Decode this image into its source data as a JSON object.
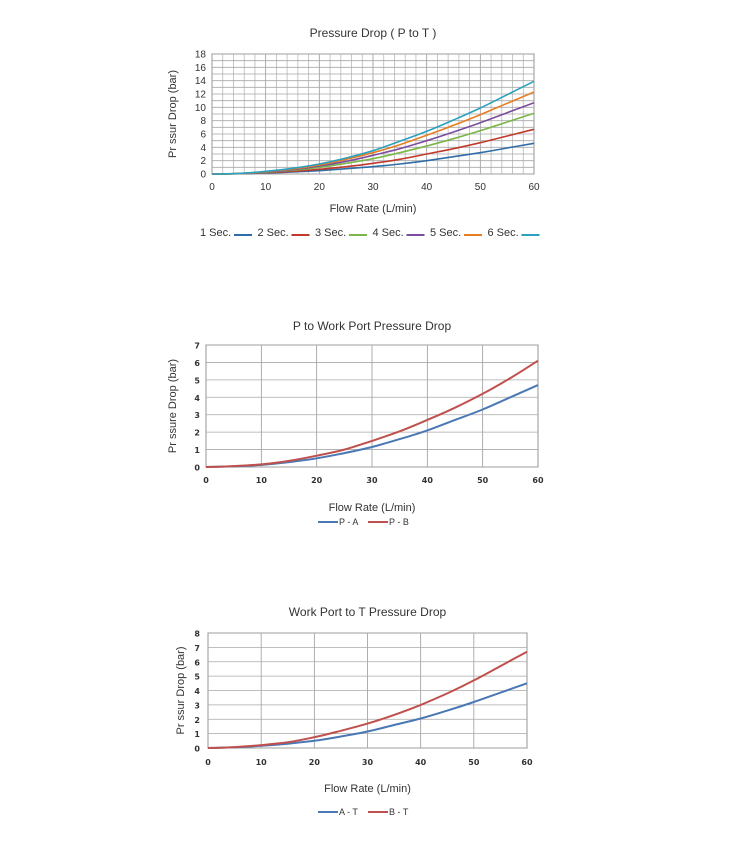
{
  "chart_data": [
    {
      "type": "line",
      "title": "Pressure Drop ( P to T )",
      "xlabel": "Flow Rate (L/min)",
      "ylabel": "Pr  ssur  Drop (bar)",
      "xlim": [
        0,
        60
      ],
      "ylim": [
        0,
        18
      ],
      "x_ticks": [
        "0",
        "10",
        "20",
        "30",
        "40",
        "50",
        "60"
      ],
      "y_ticks": [
        "0",
        "2",
        "4",
        "6",
        "8",
        "10",
        "12",
        "14",
        "16",
        "18"
      ],
      "grid": true,
      "legend_position": "bottom",
      "x": [
        0,
        5,
        10,
        15,
        20,
        25,
        30,
        35,
        40,
        45,
        50,
        55,
        60
      ],
      "series": [
        {
          "name": "1 Sec.",
          "color": "#2f6da8",
          "values": [
            0,
            0.05,
            0.15,
            0.3,
            0.5,
            0.8,
            1.1,
            1.5,
            2.0,
            2.6,
            3.2,
            3.9,
            4.6
          ]
        },
        {
          "name": "2 Sec.",
          "color": "#c0392b",
          "values": [
            0,
            0.05,
            0.2,
            0.4,
            0.7,
            1.1,
            1.6,
            2.2,
            3.0,
            3.8,
            4.7,
            5.7,
            6.7
          ]
        },
        {
          "name": "3 Sec.",
          "color": "#7ab648",
          "values": [
            0,
            0.06,
            0.25,
            0.55,
            1.0,
            1.6,
            2.3,
            3.2,
            4.2,
            5.3,
            6.5,
            7.8,
            9.1
          ]
        },
        {
          "name": "4 Sec.",
          "color": "#7c4d9e",
          "values": [
            0,
            0.07,
            0.3,
            0.65,
            1.2,
            1.9,
            2.8,
            3.8,
            5.0,
            6.3,
            7.7,
            9.2,
            10.7
          ]
        },
        {
          "name": "5 Sec.",
          "color": "#e67e22",
          "values": [
            0,
            0.08,
            0.35,
            0.75,
            1.35,
            2.2,
            3.2,
            4.4,
            5.8,
            7.3,
            8.9,
            10.6,
            12.3
          ]
        },
        {
          "name": "6 Sec.",
          "color": "#2aa1c0",
          "values": [
            0,
            0.09,
            0.4,
            0.85,
            1.5,
            2.4,
            3.5,
            4.9,
            6.4,
            8.1,
            9.9,
            11.9,
            13.9
          ]
        }
      ]
    },
    {
      "type": "line",
      "title": "P to Work Port Pressure Drop",
      "xlabel": "Flow Rate (L/min)",
      "ylabel": "Pr  ssure Drop (bar)",
      "xlim": [
        0,
        60
      ],
      "ylim": [
        0,
        7
      ],
      "x_ticks": [
        "0",
        "10",
        "20",
        "30",
        "40",
        "50",
        "60"
      ],
      "y_ticks": [
        "0",
        "1",
        "2",
        "3",
        "4",
        "5",
        "6",
        "7"
      ],
      "grid": true,
      "legend_position": "bottom",
      "x": [
        0,
        5,
        10,
        15,
        20,
        25,
        30,
        35,
        40,
        45,
        50,
        55,
        60
      ],
      "series": [
        {
          "name": "P - A",
          "color": "#4a78b5",
          "values": [
            0,
            0.04,
            0.12,
            0.28,
            0.5,
            0.8,
            1.15,
            1.6,
            2.1,
            2.7,
            3.3,
            4.0,
            4.7
          ]
        },
        {
          "name": "P - B",
          "color": "#c0504d",
          "values": [
            0,
            0.05,
            0.15,
            0.35,
            0.65,
            1.0,
            1.5,
            2.05,
            2.7,
            3.4,
            4.2,
            5.1,
            6.1
          ]
        }
      ]
    },
    {
      "type": "line",
      "title": "Work Port to T Pressure Drop",
      "xlabel": "Flow Rate (L/min)",
      "ylabel": "Pr  ssur  Drop (bar)",
      "xlim": [
        0,
        60
      ],
      "ylim": [
        0,
        8
      ],
      "x_ticks": [
        "0",
        "10",
        "20",
        "30",
        "40",
        "50",
        "60"
      ],
      "y_ticks": [
        "0",
        "1",
        "2",
        "3",
        "4",
        "5",
        "6",
        "7",
        "8"
      ],
      "grid": true,
      "legend_position": "bottom",
      "x": [
        0,
        5,
        10,
        15,
        20,
        25,
        30,
        35,
        40,
        45,
        50,
        55,
        60
      ],
      "series": [
        {
          "name": "A - T",
          "color": "#4a78b5",
          "values": [
            0,
            0.05,
            0.15,
            0.3,
            0.5,
            0.8,
            1.15,
            1.6,
            2.05,
            2.6,
            3.2,
            3.85,
            4.5
          ]
        },
        {
          "name": "B - T",
          "color": "#c0504d",
          "values": [
            0,
            0.06,
            0.2,
            0.4,
            0.75,
            1.2,
            1.7,
            2.3,
            3.0,
            3.8,
            4.7,
            5.7,
            6.7
          ]
        }
      ]
    }
  ]
}
